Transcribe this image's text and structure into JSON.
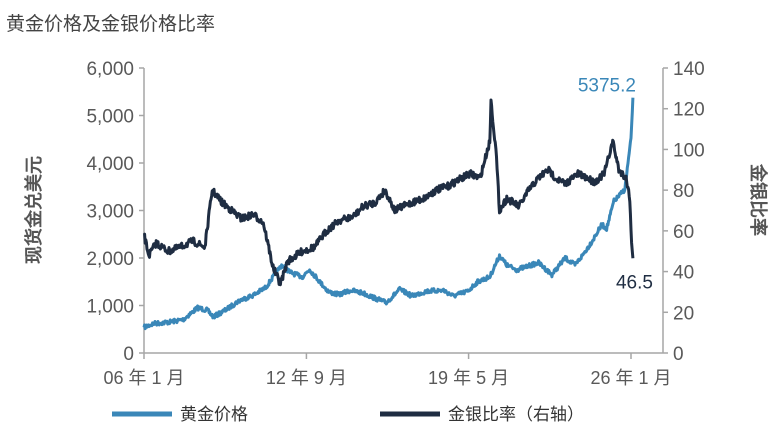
{
  "chart_data": {
    "type": "line",
    "title": "黄金价格及金银价格比率",
    "ylabel": "现货金兑美元",
    "y2label": "金银比率",
    "ylim": [
      0,
      6000
    ],
    "y2lim": [
      0,
      140
    ],
    "yticks": [
      "0",
      "1,000",
      "2,000",
      "3,000",
      "4,000",
      "5,000",
      "6,000"
    ],
    "ytick_values": [
      0,
      1000,
      2000,
      3000,
      4000,
      5000,
      6000
    ],
    "y2ticks": [
      "0",
      "20",
      "40",
      "60",
      "80",
      "100",
      "120",
      "140"
    ],
    "y2tick_values": [
      0,
      20,
      40,
      60,
      80,
      100,
      120,
      140
    ],
    "xlim": [
      2006.0,
      2026.1
    ],
    "xticks": [
      "06 年 1 月",
      "12 年 9 月",
      "19 年 5 月",
      "26 年 1 月"
    ],
    "xtick_values": [
      2006.0,
      2012.67,
      2019.33,
      2026.0
    ],
    "legend_position": "bottom",
    "series": [
      {
        "name": "黄金价格",
        "axis": "left",
        "color": "#3a87b8",
        "end_label": "5375.2",
        "x": [
          2006.0,
          2006.4,
          2007.0,
          2007.6,
          2008.2,
          2008.6,
          2008.85,
          2009.4,
          2009.9,
          2010.5,
          2011.0,
          2011.65,
          2012.0,
          2012.5,
          2012.8,
          2013.3,
          2013.6,
          2014.0,
          2014.5,
          2015.0,
          2015.5,
          2015.95,
          2016.5,
          2017.0,
          2017.6,
          2018.3,
          2018.7,
          2019.3,
          2019.7,
          2020.2,
          2020.6,
          2020.9,
          2021.3,
          2021.6,
          2022.2,
          2022.75,
          2023.3,
          2023.7,
          2024.0,
          2024.4,
          2024.8,
          2025.0,
          2025.3,
          2025.5,
          2025.75,
          2025.9,
          2026.0,
          2026.08
        ],
        "y": [
          540,
          620,
          650,
          700,
          950,
          900,
          760,
          920,
          1100,
          1220,
          1380,
          1850,
          1700,
          1600,
          1760,
          1450,
          1280,
          1230,
          1320,
          1260,
          1150,
          1060,
          1340,
          1200,
          1300,
          1320,
          1200,
          1300,
          1500,
          1600,
          2050,
          1850,
          1750,
          1800,
          1900,
          1650,
          2000,
          1850,
          2050,
          2350,
          2700,
          2620,
          3200,
          3300,
          3450,
          4100,
          4500,
          5375.2
        ]
      },
      {
        "name": "金银比率（右轴）",
        "axis": "right",
        "color": "#1f2d42",
        "end_label": "46.5",
        "x": [
          2006.0,
          2006.2,
          2006.5,
          2007.0,
          2007.5,
          2008.0,
          2008.5,
          2008.8,
          2009.2,
          2009.6,
          2010.0,
          2010.5,
          2010.9,
          2011.3,
          2011.6,
          2011.9,
          2012.5,
          2013.0,
          2013.5,
          2014.0,
          2014.6,
          2015.0,
          2015.5,
          2015.9,
          2016.3,
          2016.8,
          2017.5,
          2018.0,
          2018.5,
          2018.9,
          2019.4,
          2019.8,
          2020.2,
          2020.25,
          2020.45,
          2020.6,
          2020.9,
          2021.4,
          2021.8,
          2022.2,
          2022.6,
          2022.9,
          2023.3,
          2023.8,
          2024.2,
          2024.5,
          2024.9,
          2025.25,
          2025.5,
          2025.8,
          2025.95,
          2026.0,
          2026.08
        ],
        "y": [
          58,
          48,
          54,
          50,
          52,
          55,
          52,
          80,
          74,
          70,
          66,
          68,
          64,
          42,
          34,
          45,
          50,
          52,
          60,
          65,
          67,
          72,
          74,
          80,
          70,
          73,
          76,
          80,
          82,
          85,
          88,
          86,
          104,
          124,
          100,
          70,
          76,
          72,
          80,
          86,
          90,
          86,
          83,
          88,
          86,
          84,
          88,
          104,
          90,
          86,
          76,
          60,
          46.5
        ]
      }
    ]
  }
}
